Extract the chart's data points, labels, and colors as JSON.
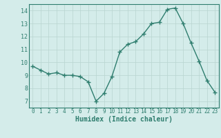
{
  "x": [
    0,
    1,
    2,
    3,
    4,
    5,
    6,
    7,
    8,
    9,
    10,
    11,
    12,
    13,
    14,
    15,
    16,
    17,
    18,
    19,
    20,
    21,
    22,
    23
  ],
  "y": [
    9.7,
    9.4,
    9.1,
    9.2,
    9.0,
    9.0,
    8.9,
    8.5,
    7.0,
    7.6,
    8.9,
    10.8,
    11.4,
    11.6,
    12.2,
    13.0,
    13.1,
    14.1,
    14.2,
    13.0,
    11.5,
    10.1,
    8.6,
    7.7
  ],
  "line_color": "#2e7d6e",
  "marker": "+",
  "markersize": 4,
  "linewidth": 1.0,
  "xlabel": "Humidex (Indice chaleur)",
  "xlim": [
    -0.5,
    23.5
  ],
  "ylim": [
    6.5,
    14.5
  ],
  "yticks": [
    7,
    8,
    9,
    10,
    11,
    12,
    13,
    14
  ],
  "xticks": [
    0,
    1,
    2,
    3,
    4,
    5,
    6,
    7,
    8,
    9,
    10,
    11,
    12,
    13,
    14,
    15,
    16,
    17,
    18,
    19,
    20,
    21,
    22,
    23
  ],
  "bg_color": "#d4ecea",
  "grid_color": "#b8d4d0",
  "line_label_color": "#2e7d6e"
}
